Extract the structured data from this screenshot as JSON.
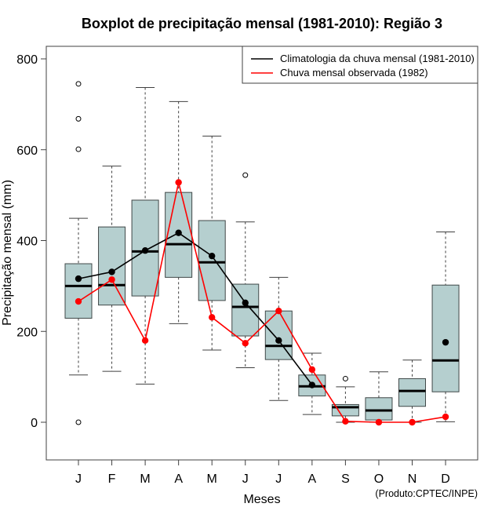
{
  "chart_data": {
    "type": "boxplot",
    "title": "Boxplot de precipitação mensal (1981-2010): Região 3",
    "xlabel": "Meses",
    "ylabel": "Precipitação mensal (mm)",
    "ylim": [
      -85,
      825
    ],
    "yticks": [
      0,
      200,
      400,
      600,
      800
    ],
    "grid": false,
    "categories": [
      "J",
      "F",
      "M",
      "A",
      "M",
      "J",
      "J",
      "A",
      "S",
      "O",
      "N",
      "D"
    ],
    "boxes": [
      {
        "whisker_low": 104,
        "q1": 229,
        "median": 300,
        "q3": 349,
        "whisker_high": 449,
        "outliers": [
          745,
          668,
          601,
          0
        ]
      },
      {
        "whisker_low": 112,
        "q1": 258,
        "median": 302,
        "q3": 430,
        "whisker_high": 564,
        "outliers": []
      },
      {
        "whisker_low": 84,
        "q1": 278,
        "median": 376,
        "q3": 489,
        "whisker_high": 737,
        "outliers": []
      },
      {
        "whisker_low": 217,
        "q1": 319,
        "median": 392,
        "q3": 506,
        "whisker_high": 706,
        "outliers": []
      },
      {
        "whisker_low": 159,
        "q1": 268,
        "median": 352,
        "q3": 444,
        "whisker_high": 630,
        "outliers": []
      },
      {
        "whisker_low": 120,
        "q1": 190,
        "median": 254,
        "q3": 304,
        "whisker_high": 441,
        "outliers": [
          544
        ]
      },
      {
        "whisker_low": 48,
        "q1": 138,
        "median": 168,
        "q3": 245,
        "whisker_high": 319,
        "outliers": []
      },
      {
        "whisker_low": 17,
        "q1": 58,
        "median": 79,
        "q3": 104,
        "whisker_high": 152,
        "outliers": []
      },
      {
        "whisker_low": 0,
        "q1": 14,
        "median": 33,
        "q3": 39,
        "whisker_high": 78,
        "outliers": [
          96
        ]
      },
      {
        "whisker_low": 0,
        "q1": 5,
        "median": 26,
        "q3": 54,
        "whisker_high": 111,
        "outliers": []
      },
      {
        "whisker_low": 0,
        "q1": 35,
        "median": 69,
        "q3": 96,
        "whisker_high": 137,
        "outliers": []
      },
      {
        "whisker_low": 1,
        "q1": 67,
        "median": 136,
        "q3": 302,
        "whisker_high": 419,
        "outliers": []
      }
    ],
    "series": [
      {
        "name": "Climatologia da chuva mensal (1981-2010)",
        "color": "#000000",
        "values": [
          316,
          331,
          378,
          417,
          366,
          263,
          180,
          82,
          null,
          null,
          null,
          176
        ]
      },
      {
        "name": "Chuva mensal observada (1982)",
        "color": "#ff0000",
        "values": [
          266,
          314,
          180,
          528,
          231,
          174,
          245,
          116,
          2,
          0,
          0,
          12
        ]
      }
    ],
    "legend": {
      "position": "top-right"
    },
    "box_fill": "#b5cfcf",
    "box_stroke": "#404848",
    "credit": "(Produto:CPTEC/INPE)"
  }
}
